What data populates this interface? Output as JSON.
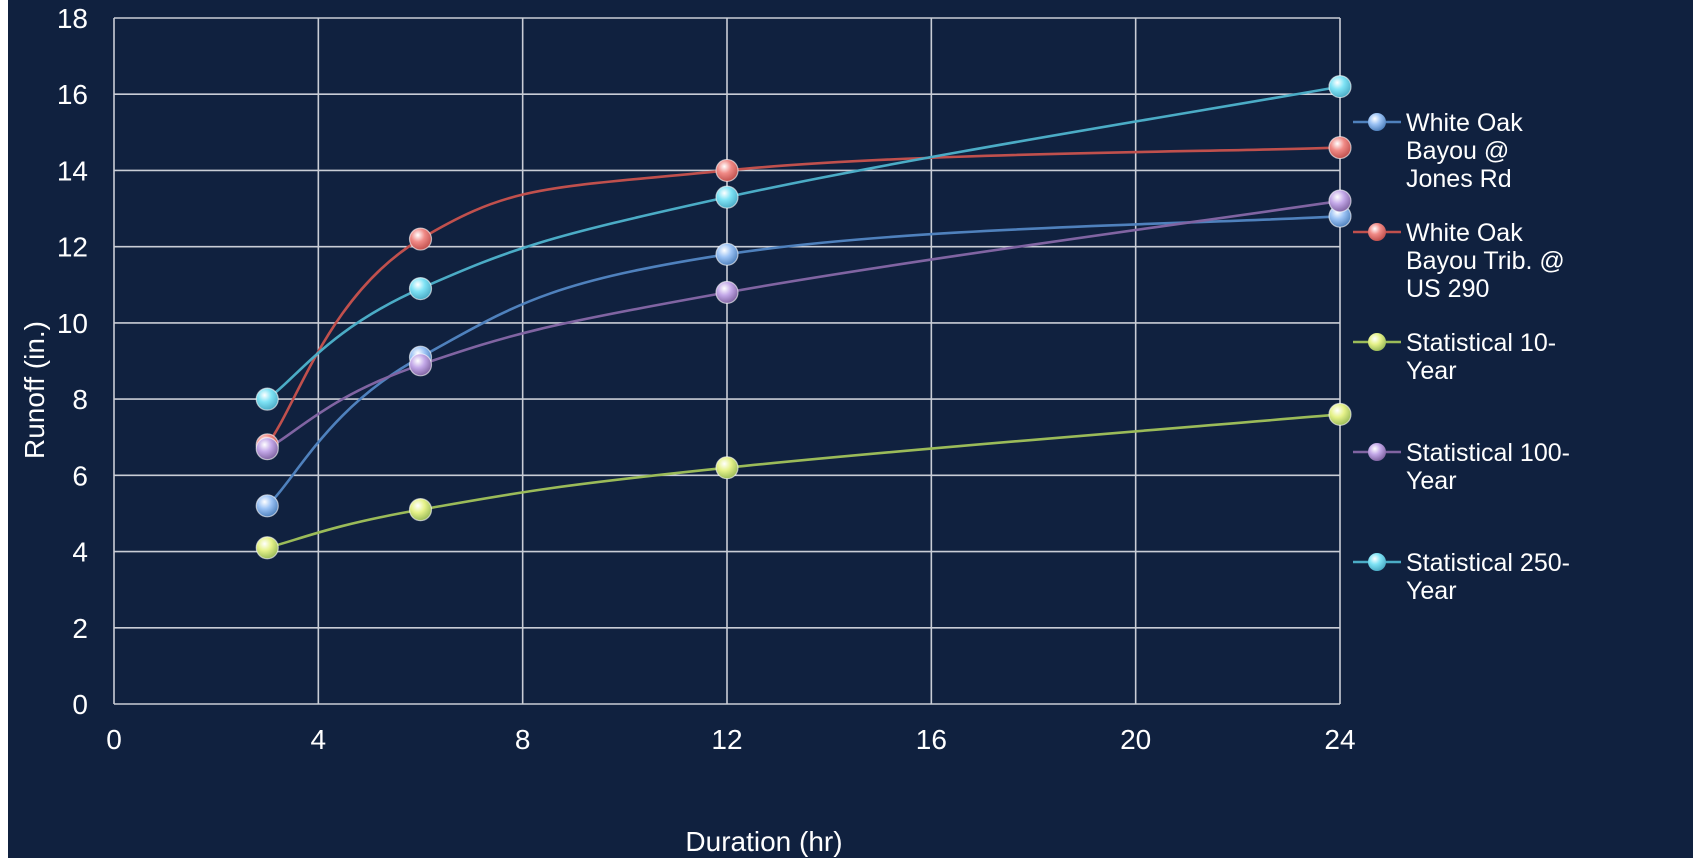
{
  "colors": {
    "background": "#10213f",
    "grid": "#c9cdd6",
    "text": "#ffffff"
  },
  "chart_data": {
    "type": "line",
    "title": "",
    "xlabel": "Duration (hr)",
    "ylabel": "Runoff (in.)",
    "xlim": [
      0,
      24
    ],
    "ylim": [
      0,
      18
    ],
    "xticks": [
      0,
      4,
      8,
      12,
      16,
      20,
      24
    ],
    "yticks": [
      0,
      2,
      4,
      6,
      8,
      10,
      12,
      14,
      16,
      18
    ],
    "grid": true,
    "smoothed": true,
    "legend_position": "right",
    "series": [
      {
        "name": "White Oak Bayou @ Jones Rd",
        "legend_lines": [
          "White Oak",
          "Bayou @",
          "Jones Rd"
        ],
        "line_color": "#4f81bd",
        "marker_color": "#9cc3f5",
        "x": [
          3,
          6,
          12,
          24
        ],
        "y": [
          5.2,
          9.1,
          11.8,
          12.8
        ]
      },
      {
        "name": "White Oak Bayou Trib. @ US 290",
        "legend_lines": [
          "White Oak",
          "Bayou Trib. @",
          "US 290"
        ],
        "line_color": "#c0504d",
        "marker_color": "#f08a86",
        "x": [
          3,
          6,
          12,
          24
        ],
        "y": [
          6.8,
          12.2,
          14.0,
          14.6
        ]
      },
      {
        "name": "Statistical 10-Year",
        "legend_lines": [
          "Statistical 10-",
          "Year"
        ],
        "line_color": "#9bbb59",
        "marker_color": "#e6f28a",
        "x": [
          3,
          6,
          12,
          24
        ],
        "y": [
          4.1,
          5.1,
          6.2,
          7.6
        ]
      },
      {
        "name": "Statistical 100-Year",
        "legend_lines": [
          "Statistical 100-",
          "Year"
        ],
        "line_color": "#8064a2",
        "marker_color": "#c3a8e8",
        "x": [
          3,
          6,
          12,
          24
        ],
        "y": [
          6.7,
          8.9,
          10.8,
          13.2
        ]
      },
      {
        "name": "Statistical 250-Year",
        "legend_lines": [
          "Statistical 250-",
          "Year"
        ],
        "line_color": "#4bacc6",
        "marker_color": "#7fe3f5",
        "x": [
          3,
          6,
          12,
          24
        ],
        "y": [
          8.0,
          10.9,
          13.3,
          16.2
        ]
      }
    ]
  }
}
